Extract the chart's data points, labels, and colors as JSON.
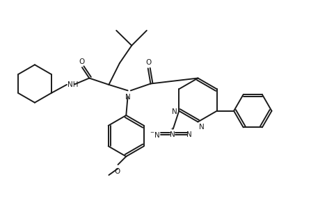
{
  "bg_color": "#ffffff",
  "line_color": "#1a1a1a",
  "line_width": 1.4,
  "font_size": 7.5,
  "fig_width": 4.47,
  "fig_height": 2.88,
  "dpi": 100,
  "xlim": [
    0,
    9.5
  ],
  "ylim": [
    0,
    6.1
  ]
}
